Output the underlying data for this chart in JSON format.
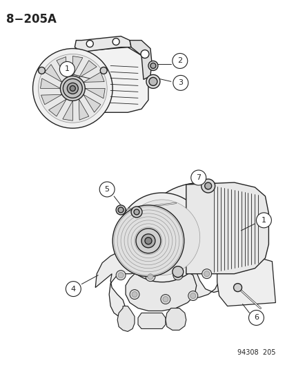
{
  "title": "8−205A",
  "bg_color": "#ffffff",
  "lc": "#222222",
  "fig_width": 4.14,
  "fig_height": 5.33,
  "dpi": 100,
  "bottom_label": "94308  205"
}
